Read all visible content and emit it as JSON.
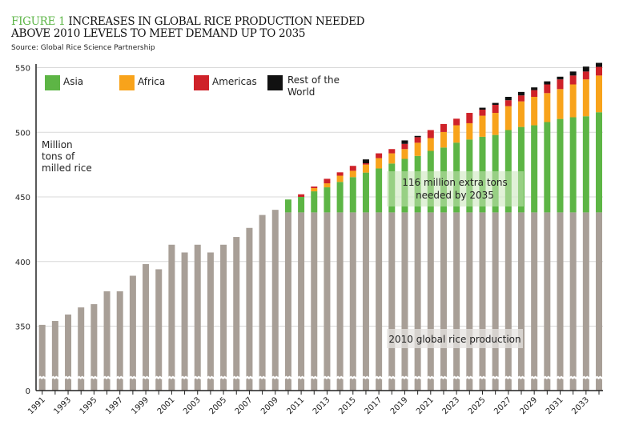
{
  "header": {
    "figure_label": "FIGURE 1",
    "title_rest": "INCREASES IN GLOBAL RICE PRODUCTION NEEDED",
    "title_line2": "ABOVE 2010 LEVELS TO MEET DEMAND UP TO 2035",
    "source": "Source: Global Rice Science Partnership"
  },
  "chart_data": {
    "type": "bar",
    "stacked": true,
    "title": "FIGURE 1 INCREASES IN GLOBAL RICE PRODUCTION NEEDED ABOVE 2010 LEVELS TO MEET DEMAND UP TO 2035",
    "ylabel": "Million tons of milled rice",
    "yticks": [
      "0",
      "350",
      "400",
      "450",
      "500",
      "550"
    ],
    "ylim": [
      0,
      555
    ],
    "axis_break": "between 0 and 350",
    "grid": true,
    "legend_placement": "top",
    "annotations": [
      "116 million extra tons needed by 2035",
      "2010 global rice production"
    ],
    "baseline_2010": 438,
    "categories": [
      1991,
      1992,
      1993,
      1994,
      1995,
      1996,
      1997,
      1998,
      1999,
      2000,
      2001,
      2002,
      2003,
      2004,
      2005,
      2006,
      2007,
      2008,
      2009,
      2010,
      2011,
      2012,
      2013,
      2014,
      2015,
      2016,
      2017,
      2018,
      2019,
      2020,
      2021,
      2022,
      2023,
      2024,
      2025,
      2026,
      2027,
      2028,
      2029,
      2030,
      2031,
      2032,
      2033,
      2034
    ],
    "xtick_labels": [
      "1991",
      "1993",
      "1995",
      "1997",
      "1999",
      "2001",
      "2003",
      "2005",
      "2007",
      "2009",
      "2011",
      "2013",
      "2015",
      "2017",
      "2019",
      "2021",
      "2023",
      "2025",
      "2027",
      "2029",
      "2031",
      "2033"
    ],
    "historical_totals": [
      351,
      354,
      359,
      364.5,
      367,
      377,
      377,
      389,
      398,
      394,
      413,
      407,
      413,
      407,
      413,
      419,
      426,
      436,
      440
    ],
    "series": [
      {
        "name": "Asia",
        "color": "#5db545",
        "cumulative_tops": [
          448,
          450,
          454.3,
          457.4,
          461.6,
          465.3,
          468.8,
          472,
          475.8,
          479.4,
          481.7,
          485.6,
          488.2,
          492,
          494.4,
          496.5,
          497.9,
          501.7,
          504.1,
          505.4,
          507.9,
          510.3,
          511.6,
          512.4,
          515.5
        ]
      },
      {
        "name": "Africa",
        "color": "#f8a31b",
        "cumulative_tops": [
          448,
          450,
          456.8,
          460.5,
          466.4,
          470.2,
          475,
          480,
          483.7,
          487,
          491.9,
          495.5,
          500.2,
          505.4,
          507,
          512.8,
          515,
          520.2,
          523.9,
          527.4,
          530.3,
          533.4,
          537,
          540.9,
          543.9
        ]
      },
      {
        "name": "Americas",
        "color": "#cf2229",
        "cumulative_tops": [
          448,
          452,
          458,
          464,
          469,
          474,
          476,
          483.7,
          487,
          491,
          496.2,
          501.7,
          506.4,
          510.5,
          515,
          517.5,
          521.2,
          524.8,
          528.5,
          532.6,
          537,
          540.9,
          543.9,
          547,
          550.6
        ]
      },
      {
        "name": "Rest of the World",
        "color": "#111111",
        "cumulative_tops": [
          448,
          452,
          458,
          464,
          469,
          474,
          479,
          483.7,
          487,
          493.7,
          497.2,
          501.7,
          506.4,
          510.5,
          515,
          519,
          522.7,
          527.4,
          531.2,
          534.7,
          539.4,
          543,
          547,
          550.8,
          553.7
        ]
      }
    ],
    "colors": {
      "historical": "#a89f97",
      "axis": "#222222",
      "grid": "#d9d9d9"
    }
  },
  "legend": [
    {
      "label": "Asia",
      "color": "#5db545"
    },
    {
      "label": "Africa",
      "color": "#f8a31b"
    },
    {
      "label": "Americas",
      "color": "#cf2229"
    },
    {
      "label_line1": "Rest of the",
      "label_line2": "World",
      "color": "#111111"
    }
  ],
  "ylabel_lines": [
    "Million",
    "tons of",
    "milled rice"
  ],
  "annotation_extra": [
    "116 million extra tons",
    "needed by 2035"
  ],
  "annotation_base": "2010 global rice production"
}
